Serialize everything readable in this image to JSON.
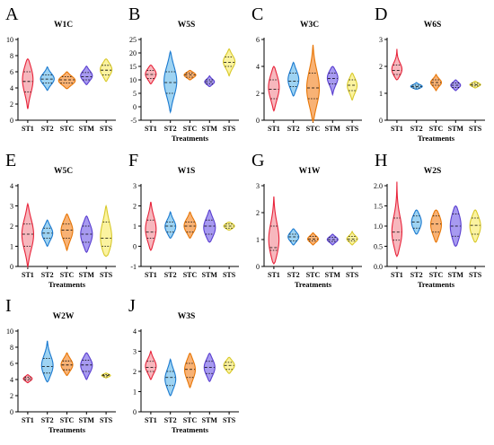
{
  "chart_data": [
    {
      "type": "violin",
      "label": "A",
      "title": "W1C",
      "xlabel": "",
      "ylim": [
        0,
        10
      ],
      "yticks": [
        0,
        2,
        4,
        6,
        8,
        10
      ],
      "categories": [
        "ST1",
        "ST2",
        "STC",
        "STM",
        "STS"
      ],
      "violins": [
        {
          "min": 1.4,
          "max": 7.6,
          "q1": 3.5,
          "median": 4.8,
          "q3": 6.0,
          "peak": 5.2,
          "width": 0.55
        },
        {
          "min": 3.7,
          "max": 6.6,
          "q1": 4.6,
          "median": 5.1,
          "q3": 5.6,
          "peak": 5.1,
          "width": 0.7
        },
        {
          "min": 3.9,
          "max": 6.0,
          "q1": 4.6,
          "median": 5.0,
          "q3": 5.4,
          "peak": 4.9,
          "width": 0.85
        },
        {
          "min": 4.4,
          "max": 6.7,
          "q1": 5.0,
          "median": 5.4,
          "q3": 5.9,
          "peak": 5.5,
          "width": 0.6
        },
        {
          "min": 4.8,
          "max": 7.6,
          "q1": 5.6,
          "median": 6.2,
          "q3": 6.8,
          "peak": 6.3,
          "width": 0.6
        }
      ]
    },
    {
      "type": "violin",
      "label": "B",
      "title": "W5S",
      "xlabel": "Treatments",
      "ylim": [
        -5,
        25
      ],
      "yticks": [
        -5,
        0,
        5,
        10,
        15,
        20,
        25
      ],
      "categories": [
        "ST1",
        "ST2",
        "STC",
        "STM",
        "STS"
      ],
      "violins": [
        {
          "min": 8.5,
          "max": 15.5,
          "q1": 10.5,
          "median": 12.0,
          "q3": 13.5,
          "peak": 12.2,
          "width": 0.55
        },
        {
          "min": -2.0,
          "max": 20.5,
          "q1": 5.0,
          "median": 9.0,
          "q3": 13.0,
          "peak": 9.5,
          "width": 0.65
        },
        {
          "min": 10.0,
          "max": 13.5,
          "q1": 11.0,
          "median": 11.8,
          "q3": 12.5,
          "peak": 11.8,
          "width": 0.6
        },
        {
          "min": 7.5,
          "max": 11.5,
          "q1": 8.5,
          "median": 9.3,
          "q3": 10.0,
          "peak": 9.2,
          "width": 0.5
        },
        {
          "min": 11.5,
          "max": 21.5,
          "q1": 15.0,
          "median": 16.5,
          "q3": 18.5,
          "peak": 16.8,
          "width": 0.6
        }
      ]
    },
    {
      "type": "violin",
      "label": "C",
      "title": "W3C",
      "xlabel": "",
      "ylim": [
        0,
        6
      ],
      "yticks": [
        0,
        2,
        4,
        6
      ],
      "categories": [
        "ST1",
        "ST2",
        "STC",
        "STM",
        "STS"
      ],
      "violins": [
        {
          "min": 0.7,
          "max": 4.0,
          "q1": 1.6,
          "median": 2.3,
          "q3": 3.0,
          "peak": 2.5,
          "width": 0.55
        },
        {
          "min": 1.8,
          "max": 4.3,
          "q1": 2.5,
          "median": 2.9,
          "q3": 3.5,
          "peak": 3.0,
          "width": 0.55
        },
        {
          "min": -0.1,
          "max": 5.6,
          "q1": 1.6,
          "median": 2.4,
          "q3": 3.5,
          "peak": 2.3,
          "width": 0.65
        },
        {
          "min": 1.9,
          "max": 4.0,
          "q1": 2.7,
          "median": 3.1,
          "q3": 3.5,
          "peak": 3.2,
          "width": 0.55
        },
        {
          "min": 1.5,
          "max": 3.5,
          "q1": 2.2,
          "median": 2.6,
          "q3": 3.0,
          "peak": 2.6,
          "width": 0.5
        }
      ]
    },
    {
      "type": "violin",
      "label": "D",
      "title": "W6S",
      "xlabel": "Treatments",
      "ylim": [
        0,
        3
      ],
      "yticks": [
        0,
        1,
        2,
        3
      ],
      "categories": [
        "ST1",
        "ST2",
        "STC",
        "STM",
        "STS"
      ],
      "violins": [
        {
          "min": 1.5,
          "max": 2.65,
          "q1": 1.7,
          "median": 1.85,
          "q3": 2.05,
          "peak": 1.85,
          "width": 0.55
        },
        {
          "min": 1.15,
          "max": 1.4,
          "q1": 1.2,
          "median": 1.25,
          "q3": 1.3,
          "peak": 1.25,
          "width": 0.6
        },
        {
          "min": 1.1,
          "max": 1.7,
          "q1": 1.3,
          "median": 1.4,
          "q3": 1.5,
          "peak": 1.4,
          "width": 0.55
        },
        {
          "min": 1.1,
          "max": 1.5,
          "q1": 1.22,
          "median": 1.3,
          "q3": 1.38,
          "peak": 1.3,
          "width": 0.5
        },
        {
          "min": 1.2,
          "max": 1.45,
          "q1": 1.27,
          "median": 1.32,
          "q3": 1.37,
          "peak": 1.32,
          "width": 0.55
        }
      ]
    },
    {
      "type": "violin",
      "label": "E",
      "title": "W5C",
      "xlabel": "Treatments",
      "ylim": [
        0,
        4
      ],
      "yticks": [
        0,
        1,
        2,
        3,
        4
      ],
      "categories": [
        "ST1",
        "ST2",
        "STC",
        "STM",
        "STS"
      ],
      "violins": [
        {
          "min": 0.0,
          "max": 3.1,
          "q1": 1.0,
          "median": 1.6,
          "q3": 2.1,
          "peak": 1.6,
          "width": 0.6
        },
        {
          "min": 1.0,
          "max": 2.3,
          "q1": 1.4,
          "median": 1.65,
          "q3": 1.9,
          "peak": 1.65,
          "width": 0.55
        },
        {
          "min": 0.8,
          "max": 2.6,
          "q1": 1.4,
          "median": 1.8,
          "q3": 2.1,
          "peak": 1.8,
          "width": 0.6
        },
        {
          "min": 0.7,
          "max": 2.5,
          "q1": 1.2,
          "median": 1.6,
          "q3": 2.0,
          "peak": 1.6,
          "width": 0.6
        },
        {
          "min": 0.5,
          "max": 3.0,
          "q1": 1.0,
          "median": 1.4,
          "q3": 2.2,
          "peak": 1.3,
          "width": 0.6
        }
      ]
    },
    {
      "type": "violin",
      "label": "F",
      "title": "W1S",
      "xlabel": "",
      "ylim": [
        -1,
        3
      ],
      "yticks": [
        -1,
        0,
        1,
        2,
        3
      ],
      "categories": [
        "ST1",
        "ST2",
        "STC",
        "STM",
        "STS"
      ],
      "violins": [
        {
          "min": -0.2,
          "max": 2.2,
          "q1": 0.4,
          "median": 0.7,
          "q3": 1.3,
          "peak": 0.8,
          "width": 0.55
        },
        {
          "min": 0.4,
          "max": 1.7,
          "q1": 0.7,
          "median": 1.0,
          "q3": 1.2,
          "peak": 0.95,
          "width": 0.55
        },
        {
          "min": 0.4,
          "max": 1.7,
          "q1": 0.7,
          "median": 1.0,
          "q3": 1.2,
          "peak": 1.0,
          "width": 0.6
        },
        {
          "min": 0.2,
          "max": 1.8,
          "q1": 0.6,
          "median": 1.0,
          "q3": 1.3,
          "peak": 0.9,
          "width": 0.6
        },
        {
          "min": 0.8,
          "max": 1.2,
          "q1": 0.9,
          "median": 1.0,
          "q3": 1.1,
          "peak": 1.0,
          "width": 0.55
        }
      ]
    },
    {
      "type": "violin",
      "label": "G",
      "title": "W1W",
      "xlabel": "Treatments",
      "ylim": [
        0,
        3
      ],
      "yticks": [
        0,
        1,
        2,
        3
      ],
      "categories": [
        "ST1",
        "ST2",
        "STC",
        "STM",
        "STS"
      ],
      "violins": [
        {
          "min": 0.1,
          "max": 2.6,
          "q1": 0.6,
          "median": 0.7,
          "q3": 1.5,
          "peak": 0.9,
          "width": 0.55
        },
        {
          "min": 0.8,
          "max": 1.4,
          "q1": 0.95,
          "median": 1.1,
          "q3": 1.2,
          "peak": 1.1,
          "width": 0.55
        },
        {
          "min": 0.8,
          "max": 1.25,
          "q1": 0.95,
          "median": 1.02,
          "q3": 1.12,
          "peak": 1.02,
          "width": 0.55
        },
        {
          "min": 0.8,
          "max": 1.2,
          "q1": 0.93,
          "median": 1.0,
          "q3": 1.08,
          "peak": 1.0,
          "width": 0.55
        },
        {
          "min": 0.8,
          "max": 1.3,
          "q1": 0.95,
          "median": 1.02,
          "q3": 1.12,
          "peak": 1.02,
          "width": 0.55
        }
      ]
    },
    {
      "type": "violin",
      "label": "H",
      "title": "W2S",
      "xlabel": "Treatments",
      "ylim": [
        0,
        2
      ],
      "yticks": [
        0.0,
        0.5,
        1.0,
        1.5,
        2.0
      ],
      "tick_decimals": 1,
      "categories": [
        "ST1",
        "ST2",
        "STC",
        "STM",
        "STS"
      ],
      "violins": [
        {
          "min": 0.25,
          "max": 2.1,
          "q1": 0.65,
          "median": 0.85,
          "q3": 1.2,
          "peak": 0.8,
          "width": 0.55
        },
        {
          "min": 0.8,
          "max": 1.4,
          "q1": 0.95,
          "median": 1.1,
          "q3": 1.25,
          "peak": 1.1,
          "width": 0.5
        },
        {
          "min": 0.6,
          "max": 1.4,
          "q1": 0.85,
          "median": 1.05,
          "q3": 1.25,
          "peak": 1.05,
          "width": 0.55
        },
        {
          "min": 0.5,
          "max": 1.5,
          "q1": 0.75,
          "median": 1.0,
          "q3": 1.3,
          "peak": 1.0,
          "width": 0.55
        },
        {
          "min": 0.6,
          "max": 1.4,
          "q1": 0.8,
          "median": 1.02,
          "q3": 1.2,
          "peak": 1.0,
          "width": 0.55
        }
      ]
    },
    {
      "type": "violin",
      "label": "I",
      "title": "W2W",
      "xlabel": "Treatments",
      "ylim": [
        0,
        10
      ],
      "yticks": [
        0,
        2,
        4,
        6,
        8,
        10
      ],
      "categories": [
        "ST1",
        "ST2",
        "STC",
        "STM",
        "STS"
      ],
      "violins": [
        {
          "min": 3.6,
          "max": 4.6,
          "q1": 3.9,
          "median": 4.1,
          "q3": 4.3,
          "peak": 4.1,
          "width": 0.45
        },
        {
          "min": 3.7,
          "max": 8.8,
          "q1": 4.8,
          "median": 5.6,
          "q3": 6.6,
          "peak": 5.6,
          "width": 0.6
        },
        {
          "min": 4.5,
          "max": 7.3,
          "q1": 5.2,
          "median": 5.8,
          "q3": 6.3,
          "peak": 5.8,
          "width": 0.6
        },
        {
          "min": 4.0,
          "max": 7.3,
          "q1": 5.0,
          "median": 5.8,
          "q3": 6.4,
          "peak": 5.8,
          "width": 0.6
        },
        {
          "min": 4.2,
          "max": 4.8,
          "q1": 4.35,
          "median": 4.5,
          "q3": 4.6,
          "peak": 4.5,
          "width": 0.45
        }
      ]
    },
    {
      "type": "violin",
      "label": "J",
      "title": "W3S",
      "xlabel": "Treatments",
      "ylim": [
        0,
        4
      ],
      "yticks": [
        0,
        1,
        2,
        3,
        4
      ],
      "categories": [
        "ST1",
        "ST2",
        "STC",
        "STM",
        "STS"
      ],
      "violins": [
        {
          "min": 1.6,
          "max": 3.0,
          "q1": 2.0,
          "median": 2.2,
          "q3": 2.5,
          "peak": 2.25,
          "width": 0.55
        },
        {
          "min": 0.8,
          "max": 2.6,
          "q1": 1.3,
          "median": 1.7,
          "q3": 2.0,
          "peak": 1.6,
          "width": 0.55
        },
        {
          "min": 1.2,
          "max": 2.9,
          "q1": 1.7,
          "median": 2.1,
          "q3": 2.4,
          "peak": 2.1,
          "width": 0.55
        },
        {
          "min": 1.5,
          "max": 2.9,
          "q1": 1.9,
          "median": 2.2,
          "q3": 2.5,
          "peak": 2.2,
          "width": 0.55
        },
        {
          "min": 1.9,
          "max": 2.7,
          "q1": 2.1,
          "median": 2.3,
          "q3": 2.45,
          "peak": 2.3,
          "width": 0.55
        }
      ]
    }
  ],
  "colors": {
    "fills": [
      "#f7b7bd",
      "#9ed3f2",
      "#f8b275",
      "#a79af0",
      "#fbf3a0"
    ],
    "strokes": [
      "#e8233a",
      "#1b7ad0",
      "#e87708",
      "#5a3fd0",
      "#d8c92a"
    ]
  }
}
